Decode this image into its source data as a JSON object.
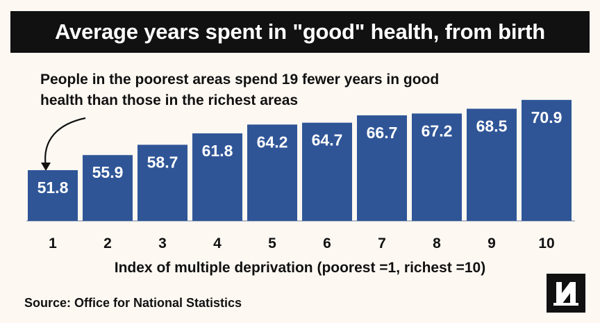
{
  "title": "Average years spent in \"good\" health, from birth",
  "annotation": "People in the poorest areas spend 19 fewer years in good health than those in the richest areas",
  "source": "Source: Office for National Statistics",
  "logo_icon": "nm-logo-icon",
  "colors": {
    "bar": "#2f5597",
    "title_bg": "#111111",
    "background": "#fdf8f2",
    "text": "#111111",
    "bar_label": "#ffffff"
  },
  "chart_data": {
    "type": "bar",
    "categories": [
      "1",
      "2",
      "3",
      "4",
      "5",
      "6",
      "7",
      "8",
      "9",
      "10"
    ],
    "values": [
      51.8,
      55.9,
      58.7,
      61.8,
      64.2,
      64.7,
      66.7,
      67.2,
      68.5,
      70.9
    ],
    "data_labels": [
      "51.8",
      "55.9",
      "58.7",
      "61.8",
      "64.2",
      "64.7",
      "66.7",
      "67.2",
      "68.5",
      "70.9"
    ],
    "title": "Average years spent in \"good\" health, from birth",
    "xlabel": "Index of multiple deprivation (poorest =1, richest =10)",
    "ylabel": "",
    "ylim": [
      38,
      72
    ],
    "grid": false,
    "legend": "none"
  }
}
